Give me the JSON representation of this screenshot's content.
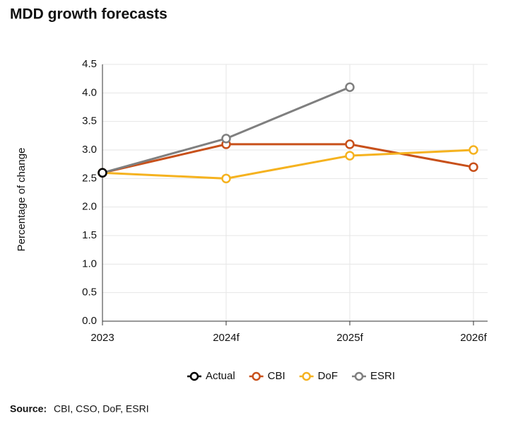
{
  "chart_data": {
    "type": "line",
    "title": "MDD growth forecasts",
    "y_label": "Percentage of change",
    "categories": [
      "2023",
      "2024f",
      "2025f",
      "2026f"
    ],
    "series": [
      {
        "name": "CBI",
        "color": "#c8501a",
        "values": [
          2.6,
          3.1,
          3.1,
          2.7
        ]
      },
      {
        "name": "DoF",
        "color": "#f5b21f",
        "values": [
          2.6,
          2.5,
          2.9,
          3.0
        ]
      },
      {
        "name": "ESRI",
        "color": "#7f7f7f",
        "values": [
          2.6,
          3.2,
          4.1,
          null
        ]
      },
      {
        "name": "Actual",
        "color": "#000000",
        "values": [
          2.6,
          null,
          null,
          null
        ]
      }
    ],
    "legend_order": [
      3,
      0,
      1,
      2
    ],
    "ylim": [
      0,
      4.5
    ],
    "yticks": [
      {
        "value": 0,
        "label": "0.0"
      },
      0.5,
      {
        "value": 1,
        "label": "1.0"
      },
      1.5,
      {
        "value": 2,
        "label": "2.0"
      },
      2.5,
      {
        "value": 3,
        "label": "3.0"
      },
      3.5,
      {
        "value": 4,
        "label": "4.0"
      },
      4.5
    ],
    "grid": true,
    "legend": "bottom",
    "source": {
      "label": "Source:",
      "text": "CBI, CSO, DoF, ESRI"
    }
  }
}
